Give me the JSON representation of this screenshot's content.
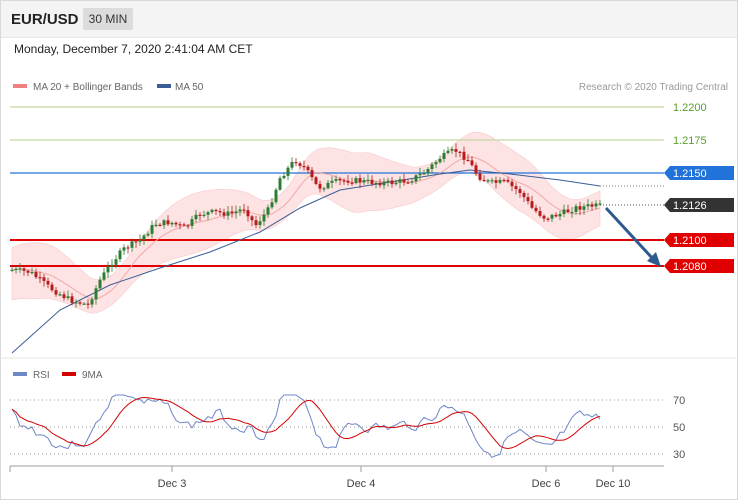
{
  "header": {
    "symbol": "EUR/USD",
    "timeframe": "30 MIN",
    "datetime": "Monday, December 7, 2020 2:41:04 AM CET"
  },
  "price_panel": {
    "legend": [
      {
        "label": "MA 20 + Bollinger Bands",
        "color": "#f08080"
      },
      {
        "label": "MA 50",
        "color": "#3a5d96"
      }
    ],
    "credit": "Research © 2020 Trading Central",
    "levels": [
      {
        "label": "1.2200",
        "kind": "green-line"
      },
      {
        "label": "1.2175",
        "kind": "green-line"
      },
      {
        "label": "1.2150",
        "kind": "blue-tag"
      },
      {
        "label": "1.2126",
        "kind": "current-tag"
      },
      {
        "label": "1.2100",
        "kind": "red-tag"
      },
      {
        "label": "1.2080",
        "kind": "red-tag"
      }
    ]
  },
  "rsi_panel": {
    "legend": [
      {
        "label": "RSI",
        "color": "#6f86c9"
      },
      {
        "label": "9MA",
        "color": "#d40000"
      }
    ],
    "levels": [
      "70",
      "50",
      "30"
    ]
  },
  "x_axis": [
    "Dec 3",
    "Dec 4",
    "Dec 6",
    "Dec 10"
  ],
  "colors": {
    "up": "#2e7d32",
    "down": "#b71c1c",
    "band": "#fde3e3",
    "ma20": "#f2a8a8",
    "ma50": "#3a5d96",
    "resistance_green": "#c5d6a0",
    "level_text_green": "#5aa02c",
    "blue_tag": "#2173d9",
    "red_tag": "#e00000",
    "current_tag": "#333333",
    "arrow": "#2e5a8f"
  },
  "chart_data": {
    "type": "candlestick",
    "y_range": [
      1.2028,
      1.2215
    ],
    "rsi_range": [
      20,
      80
    ],
    "annotations": [
      "projected decline toward 1.2080"
    ]
  }
}
